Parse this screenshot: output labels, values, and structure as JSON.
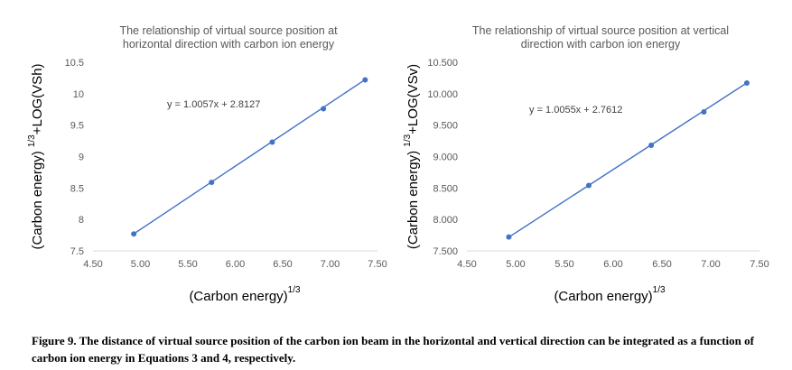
{
  "chart_data": [
    {
      "type": "scatter",
      "title_lines": [
        "The relationship of virtual source position at",
        "horizontal direction with carbon ion energy"
      ],
      "xlabel": "(Carbon energy)",
      "xlabel_sup": "1/3",
      "ylabel": "(Carbon energy) ¹ᐟ³+LOG(VSh)",
      "ylabel_main": "(Carbon energy)",
      "ylabel_sup": "1/3",
      "ylabel_tail": "+LOG(VSh)",
      "xlim": [
        4.5,
        7.5
      ],
      "ylim": [
        7.5,
        10.5
      ],
      "x_ticks": [
        "4.50",
        "5.00",
        "5.50",
        "6.00",
        "6.50",
        "7.00",
        "7.50"
      ],
      "y_ticks": [
        "7.5",
        "8",
        "8.5",
        "9",
        "9.5",
        "10",
        "10.5"
      ],
      "series": [
        {
          "x": [
            4.93,
            5.75,
            6.39,
            6.93,
            7.37
          ],
          "y": [
            7.77,
            8.59,
            9.23,
            9.76,
            10.22
          ]
        }
      ],
      "trendline": {
        "slope": 1.0057,
        "intercept": 2.8127
      },
      "equation": "y = 1.0057x + 2.8127",
      "grid": false,
      "color": "#4472c4"
    },
    {
      "type": "scatter",
      "title_lines": [
        "The relationship of virtual source position at vertical",
        "direction with carbon ion energy"
      ],
      "xlabel": "(Carbon energy)",
      "xlabel_sup": "1/3",
      "ylabel_main": "(Carbon energy)",
      "ylabel_sup": "1/3",
      "ylabel_tail": "+LOG(VSv)",
      "xlim": [
        4.5,
        7.5
      ],
      "ylim": [
        7.5,
        10.5
      ],
      "x_ticks": [
        "4.50",
        "5.00",
        "5.50",
        "6.00",
        "6.50",
        "7.00",
        "7.50"
      ],
      "y_ticks": [
        "7.500",
        "8.000",
        "8.500",
        "9.000",
        "9.500",
        "10.000",
        "10.500"
      ],
      "series": [
        {
          "x": [
            4.93,
            5.75,
            6.39,
            6.93,
            7.37
          ],
          "y": [
            7.72,
            8.54,
            9.18,
            9.71,
            10.17
          ]
        }
      ],
      "trendline": {
        "slope": 1.0055,
        "intercept": 2.7612
      },
      "equation": "y = 1.0055x + 2.7612",
      "grid": false,
      "color": "#4472c4"
    }
  ],
  "caption": "Figure 9. The distance of virtual source position of the carbon ion beam in the horizontal and vertical direction can be integrated as a function of carbon ion energy in Equations 3 and 4, respectively."
}
